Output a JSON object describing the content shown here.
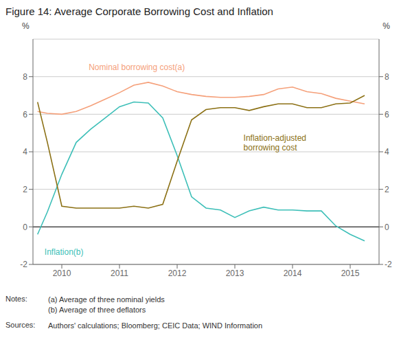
{
  "chart_data": {
    "type": "line",
    "title": "Figure 14: Average Corporate Borrowing Cost and Inflation",
    "ylabel": "%",
    "y2label": "%",
    "xlim": [
      2009.5,
      2015.5
    ],
    "xticks": [
      2010,
      2011,
      2012,
      2013,
      2014,
      2015
    ],
    "ylim": [
      -2,
      10
    ],
    "yticks": [
      -2,
      0,
      2,
      4,
      6,
      8
    ],
    "y2lim": [
      -2,
      10
    ],
    "y2ticks": [
      -2,
      0,
      2,
      4,
      6,
      8
    ],
    "grid": true,
    "x": [
      2009.58,
      2009.75,
      2010.0,
      2010.25,
      2010.5,
      2010.75,
      2011.0,
      2011.25,
      2011.5,
      2011.75,
      2012.0,
      2012.25,
      2012.5,
      2012.75,
      2013.0,
      2013.25,
      2013.5,
      2013.75,
      2014.0,
      2014.25,
      2014.5,
      2014.75,
      2015.0,
      2015.25
    ],
    "series": [
      {
        "name": "Nominal borrowing cost(a)",
        "color": "#f5a07a",
        "values": [
          6.15,
          6.05,
          6.0,
          6.15,
          6.45,
          6.8,
          7.15,
          7.55,
          7.7,
          7.5,
          7.2,
          7.05,
          6.95,
          6.9,
          6.9,
          6.95,
          7.05,
          7.35,
          7.45,
          7.2,
          7.1,
          6.85,
          6.7,
          6.55
        ]
      },
      {
        "name": "Inflation(b)",
        "color": "#3dbfb8",
        "values": [
          -0.4,
          0.8,
          2.8,
          4.5,
          5.2,
          5.8,
          6.4,
          6.65,
          6.6,
          5.8,
          3.8,
          1.6,
          1.0,
          0.9,
          0.5,
          0.85,
          1.05,
          0.9,
          0.9,
          0.85,
          0.85,
          0.05,
          -0.4,
          -0.75
        ]
      },
      {
        "name": "Inflation-adjusted\nborrowing cost",
        "color": "#8b7014",
        "values": [
          6.65,
          4.5,
          1.1,
          1.0,
          1.0,
          1.0,
          1.0,
          1.1,
          1.0,
          1.2,
          3.5,
          5.7,
          6.25,
          6.35,
          6.35,
          6.2,
          6.4,
          6.55,
          6.55,
          6.35,
          6.35,
          6.55,
          6.6,
          7.0
        ]
      }
    ],
    "annotations": [
      {
        "text": "Nominal borrowing cost(a)",
        "x": 2011.3,
        "y": 8.5,
        "color": "#f5a07a"
      },
      {
        "text": "Inflation(b)",
        "x": 2009.7,
        "y": -1.35,
        "color": "#3dbfb8"
      },
      {
        "text": "Inflation-adjusted\nborrowing cost",
        "x": 2013.15,
        "y": 5.0,
        "color": "#8b7014"
      }
    ],
    "notes": [
      {
        "label": "Notes:",
        "lines": [
          "(a) Average of three nominal yields",
          "(b) Average of three deflators"
        ]
      },
      {
        "label": "Sources:",
        "lines": [
          "Authors' calculations; Bloomberg; CEIC Data; WIND Information"
        ]
      }
    ]
  }
}
